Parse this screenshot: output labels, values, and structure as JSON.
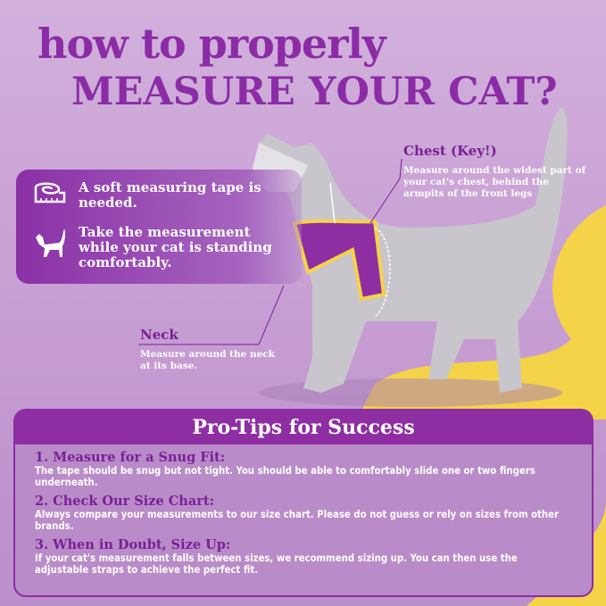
{
  "title": {
    "line1": "how to properly",
    "line2": "MEASURE YOUR CAT?"
  },
  "info": [
    {
      "icon": "measuring-tape-icon",
      "text": "A soft measuring tape is needed."
    },
    {
      "icon": "cat-icon",
      "text": "Take the measurement while your cat is standing comfortably."
    }
  ],
  "chest": {
    "label": "Chest (Key!)",
    "desc": "Measure around the widest part of your cat's chest, behind the armpits of the front legs"
  },
  "neck": {
    "label": "Neck",
    "desc": "Measure around the neck at its base."
  },
  "tips": {
    "heading": "Pro-Tips for Success",
    "items": [
      {
        "title": "1. Measure for a Snug Fit:",
        "body": "The tape should be snug but not tight. You should be able to comfortably slide one or two fingers underneath."
      },
      {
        "title": "2. Check Our Size Chart:",
        "body": "Always compare your measurements to our size chart. Please do not guess or rely on sizes from other brands."
      },
      {
        "title": "3. When in Doubt, Size Up:",
        "body": "If your cat's measurement falls between sizes, we recommend sizing up. You can then use the adjustable straps to achieve the perfect fit."
      }
    ]
  },
  "colors": {
    "accent": "#8b2ca6",
    "yellow": "#f5d348",
    "background": "#c9a3d6"
  }
}
